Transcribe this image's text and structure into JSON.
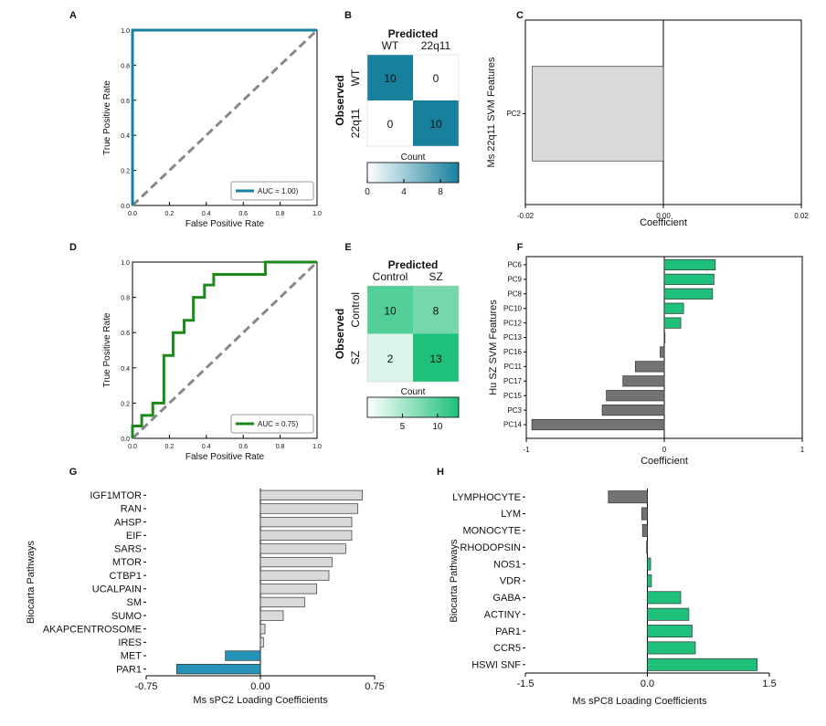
{
  "colors": {
    "teal": "#17809c",
    "green": "#1a8a1a",
    "bright_green": "#1ec07a",
    "gray": "#737373",
    "light_gray": "#d9d9d9",
    "dash": "#888888",
    "blue": "#2592b8"
  },
  "chart_data": [
    {
      "id": "A",
      "letter": "A",
      "type": "line",
      "title": "",
      "xlabel": "False Positive Rate",
      "ylabel": "True Positive Rate",
      "xlim": [
        0,
        1
      ],
      "ylim": [
        0,
        1
      ],
      "xticks": [
        "0.0",
        "0.2",
        "0.4",
        "0.6",
        "0.8",
        "1.0"
      ],
      "yticks": [
        "0.0",
        "0.2",
        "0.4",
        "0.6",
        "0.8",
        "1.0"
      ],
      "series": [
        {
          "name": "ROC",
          "x": [
            0,
            0,
            1
          ],
          "y": [
            0,
            1,
            1
          ]
        },
        {
          "name": "chance",
          "x": [
            0,
            1
          ],
          "y": [
            0,
            1
          ]
        }
      ],
      "legend": "AUC = 1.00)",
      "legend_position": "bottom-right"
    },
    {
      "id": "B",
      "letter": "B",
      "type": "heatmap",
      "title": "Predicted",
      "ylabel": "Observed",
      "col_labels": [
        "WT",
        "22q11"
      ],
      "row_labels": [
        "WT",
        "22q11"
      ],
      "matrix": [
        [
          "10",
          "0"
        ],
        [
          "0",
          "10"
        ]
      ],
      "values": [
        [
          10,
          0
        ],
        [
          0,
          10
        ]
      ],
      "colorbar": {
        "label": "Count",
        "ticks": [
          "0",
          "4",
          "8"
        ],
        "tick_values": [
          0,
          4,
          8
        ],
        "max": 10
      }
    },
    {
      "id": "C",
      "letter": "C",
      "type": "bar",
      "orientation": "horizontal",
      "xlabel": "Coefficient",
      "ylabel": "Ms 22q11 SVM  Features",
      "categories": [
        "PC2"
      ],
      "values": [
        -0.019
      ],
      "xlim": [
        -0.02,
        0.02
      ],
      "xticks": [
        "-0.02",
        "0.00",
        "0.02"
      ],
      "xtick_values": [
        -0.02,
        0,
        0.02
      ]
    },
    {
      "id": "D",
      "letter": "D",
      "type": "line",
      "xlabel": "False Positive Rate",
      "ylabel": "True Positive Rate",
      "xlim": [
        0,
        1
      ],
      "ylim": [
        0,
        1
      ],
      "xticks": [
        "0.0",
        "0.2",
        "0.4",
        "0.6",
        "0.8",
        "1.0"
      ],
      "yticks": [
        "0.0",
        "0.2",
        "0.4",
        "0.6",
        "0.8",
        "1.0"
      ],
      "series": [
        {
          "name": "ROC",
          "x": [
            0,
            0,
            0.05,
            0.05,
            0.11,
            0.11,
            0.17,
            0.17,
            0.22,
            0.22,
            0.28,
            0.28,
            0.33,
            0.33,
            0.39,
            0.39,
            0.44,
            0.44,
            0.72,
            0.72,
            1.0
          ],
          "y": [
            0,
            0.07,
            0.07,
            0.13,
            0.13,
            0.2,
            0.2,
            0.47,
            0.47,
            0.6,
            0.6,
            0.67,
            0.67,
            0.8,
            0.8,
            0.87,
            0.87,
            0.93,
            0.93,
            1.0,
            1.0
          ]
        },
        {
          "name": "chance",
          "x": [
            0,
            1
          ],
          "y": [
            0,
            1
          ]
        }
      ],
      "legend": "AUC = 0.75)",
      "legend_position": "bottom-right"
    },
    {
      "id": "E",
      "letter": "E",
      "type": "heatmap",
      "title": "Predicted",
      "ylabel": "Observed",
      "col_labels": [
        "Control",
        "SZ"
      ],
      "row_labels": [
        "Control",
        "SZ"
      ],
      "matrix": [
        [
          "10",
          "8"
        ],
        [
          "2",
          "13"
        ]
      ],
      "values": [
        [
          10,
          8
        ],
        [
          2,
          13
        ]
      ],
      "colorbar": {
        "label": "Count",
        "ticks": [
          "5",
          "10"
        ],
        "tick_values": [
          5,
          10
        ],
        "max": 13
      }
    },
    {
      "id": "F",
      "letter": "F",
      "type": "bar",
      "orientation": "horizontal",
      "xlabel": "Coefficient",
      "ylabel": "Hu SZ SVM  Features",
      "categories": [
        "PC6",
        "PC9",
        "PC8",
        "PC10",
        "PC12",
        "PC13",
        "PC16",
        "PC11",
        "PC17",
        "PC15",
        "PC3",
        "PC14"
      ],
      "values": [
        0.37,
        0.36,
        0.35,
        0.14,
        0.12,
        0.0,
        -0.03,
        -0.21,
        -0.3,
        -0.42,
        -0.45,
        -0.96
      ],
      "xlim": [
        -1,
        1
      ],
      "xticks": [
        "-1",
        "0",
        "1"
      ],
      "xtick_values": [
        -1,
        0,
        1
      ]
    },
    {
      "id": "G",
      "letter": "G",
      "type": "bar",
      "orientation": "horizontal",
      "xlabel": "Ms sPC2  Loading  Coefficients",
      "ylabel": "Biocarta Pathways",
      "categories": [
        "IGF1MTOR",
        "RAN",
        "AHSP",
        "EIF",
        "SARS",
        "MTOR",
        "CTBP1",
        "UCALPAIN",
        "SM",
        "SUMO",
        "AKAPCENTROSOME",
        "IRES",
        "MET",
        "PAR1"
      ],
      "values": [
        0.67,
        0.64,
        0.6,
        0.6,
        0.56,
        0.47,
        0.45,
        0.37,
        0.29,
        0.15,
        0.03,
        0.02,
        -0.23,
        -0.55
      ],
      "xlim": [
        -0.75,
        0.75
      ],
      "xticks": [
        "-0.75",
        "0.00",
        "0.75"
      ],
      "xtick_values": [
        -0.75,
        0,
        0.75
      ]
    },
    {
      "id": "H",
      "letter": "H",
      "type": "bar",
      "orientation": "horizontal",
      "xlabel": "Ms sPC8  Loading  Coefficients",
      "ylabel": "Biocarta Pathways",
      "categories": [
        "LYMPHOCYTE",
        "LYM",
        "MONOCYTE",
        "RHODOPSIN",
        "NOS1",
        "VDR",
        "GABA",
        "ACTINY",
        "PAR1",
        "CCR5",
        "HSWI SNF"
      ],
      "values": [
        -0.48,
        -0.07,
        -0.06,
        -0.01,
        0.04,
        0.05,
        0.41,
        0.51,
        0.55,
        0.59,
        1.35
      ],
      "xlim": [
        -1.5,
        1.5
      ],
      "xticks": [
        "-1.5",
        "0.0",
        "1.5"
      ],
      "xtick_values": [
        -1.5,
        0,
        1.5
      ]
    }
  ]
}
